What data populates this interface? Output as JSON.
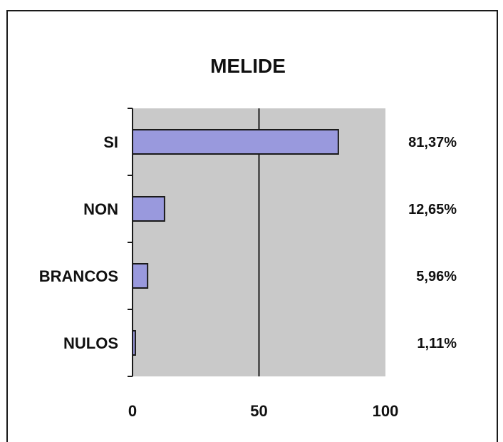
{
  "chart_data": {
    "type": "bar",
    "orientation": "horizontal",
    "title": "MELIDE",
    "categories": [
      "SI",
      "NON",
      "BRANCOS",
      "NULOS"
    ],
    "values": [
      81.37,
      12.65,
      5.96,
      1.11
    ],
    "value_labels": [
      "81,37%",
      "12,65%",
      "5,96%",
      "1,11%"
    ],
    "xlim": [
      0,
      100
    ],
    "xticks": [
      0,
      50,
      100
    ],
    "xtick_labels": [
      "0",
      "50",
      "100"
    ],
    "xlabel": "",
    "ylabel": "",
    "grid": "vertical line at 50",
    "colors": {
      "bar": "#9999dd",
      "plot_bg": "#c9c9c9",
      "axis": "#1a1a1a"
    }
  }
}
